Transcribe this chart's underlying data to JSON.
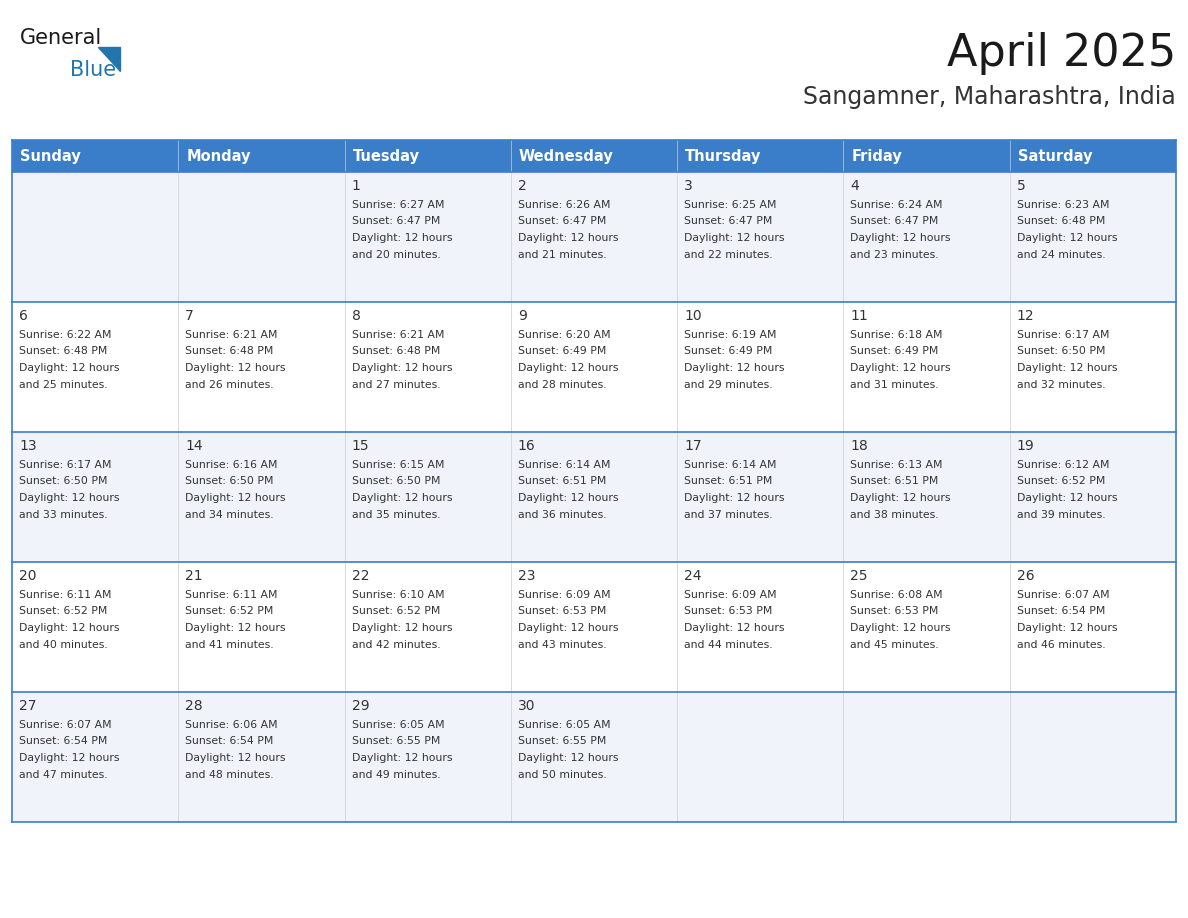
{
  "title": "April 2025",
  "subtitle": "Sangamner, Maharashtra, India",
  "header_bg_color": "#3A7DC9",
  "header_text_color": "#FFFFFF",
  "cell_bg_even": "#F0F4FA",
  "cell_bg_odd": "#FFFFFF",
  "border_color": "#3A7DC9",
  "inner_line_color": "#3A7DC9",
  "day_number_color": "#333333",
  "cell_text_color": "#333333",
  "title_color": "#1a1a1a",
  "subtitle_color": "#333333",
  "days_of_week": [
    "Sunday",
    "Monday",
    "Tuesday",
    "Wednesday",
    "Thursday",
    "Friday",
    "Saturday"
  ],
  "logo_general_color": "#1a1a1a",
  "logo_blue_color": "#2176AE",
  "weeks": [
    [
      {
        "day": "",
        "sunrise": "",
        "sunset": "",
        "daylight_min": 0
      },
      {
        "day": "",
        "sunrise": "",
        "sunset": "",
        "daylight_min": 0
      },
      {
        "day": "1",
        "sunrise": "6:27 AM",
        "sunset": "6:47 PM",
        "daylight_min": 20
      },
      {
        "day": "2",
        "sunrise": "6:26 AM",
        "sunset": "6:47 PM",
        "daylight_min": 21
      },
      {
        "day": "3",
        "sunrise": "6:25 AM",
        "sunset": "6:47 PM",
        "daylight_min": 22
      },
      {
        "day": "4",
        "sunrise": "6:24 AM",
        "sunset": "6:47 PM",
        "daylight_min": 23
      },
      {
        "day": "5",
        "sunrise": "6:23 AM",
        "sunset": "6:48 PM",
        "daylight_min": 24
      }
    ],
    [
      {
        "day": "6",
        "sunrise": "6:22 AM",
        "sunset": "6:48 PM",
        "daylight_min": 25
      },
      {
        "day": "7",
        "sunrise": "6:21 AM",
        "sunset": "6:48 PM",
        "daylight_min": 26
      },
      {
        "day": "8",
        "sunrise": "6:21 AM",
        "sunset": "6:48 PM",
        "daylight_min": 27
      },
      {
        "day": "9",
        "sunrise": "6:20 AM",
        "sunset": "6:49 PM",
        "daylight_min": 28
      },
      {
        "day": "10",
        "sunrise": "6:19 AM",
        "sunset": "6:49 PM",
        "daylight_min": 29
      },
      {
        "day": "11",
        "sunrise": "6:18 AM",
        "sunset": "6:49 PM",
        "daylight_min": 31
      },
      {
        "day": "12",
        "sunrise": "6:17 AM",
        "sunset": "6:50 PM",
        "daylight_min": 32
      }
    ],
    [
      {
        "day": "13",
        "sunrise": "6:17 AM",
        "sunset": "6:50 PM",
        "daylight_min": 33
      },
      {
        "day": "14",
        "sunrise": "6:16 AM",
        "sunset": "6:50 PM",
        "daylight_min": 34
      },
      {
        "day": "15",
        "sunrise": "6:15 AM",
        "sunset": "6:50 PM",
        "daylight_min": 35
      },
      {
        "day": "16",
        "sunrise": "6:14 AM",
        "sunset": "6:51 PM",
        "daylight_min": 36
      },
      {
        "day": "17",
        "sunrise": "6:14 AM",
        "sunset": "6:51 PM",
        "daylight_min": 37
      },
      {
        "day": "18",
        "sunrise": "6:13 AM",
        "sunset": "6:51 PM",
        "daylight_min": 38
      },
      {
        "day": "19",
        "sunrise": "6:12 AM",
        "sunset": "6:52 PM",
        "daylight_min": 39
      }
    ],
    [
      {
        "day": "20",
        "sunrise": "6:11 AM",
        "sunset": "6:52 PM",
        "daylight_min": 40
      },
      {
        "day": "21",
        "sunrise": "6:11 AM",
        "sunset": "6:52 PM",
        "daylight_min": 41
      },
      {
        "day": "22",
        "sunrise": "6:10 AM",
        "sunset": "6:52 PM",
        "daylight_min": 42
      },
      {
        "day": "23",
        "sunrise": "6:09 AM",
        "sunset": "6:53 PM",
        "daylight_min": 43
      },
      {
        "day": "24",
        "sunrise": "6:09 AM",
        "sunset": "6:53 PM",
        "daylight_min": 44
      },
      {
        "day": "25",
        "sunrise": "6:08 AM",
        "sunset": "6:53 PM",
        "daylight_min": 45
      },
      {
        "day": "26",
        "sunrise": "6:07 AM",
        "sunset": "6:54 PM",
        "daylight_min": 46
      }
    ],
    [
      {
        "day": "27",
        "sunrise": "6:07 AM",
        "sunset": "6:54 PM",
        "daylight_min": 47
      },
      {
        "day": "28",
        "sunrise": "6:06 AM",
        "sunset": "6:54 PM",
        "daylight_min": 48
      },
      {
        "day": "29",
        "sunrise": "6:05 AM",
        "sunset": "6:55 PM",
        "daylight_min": 49
      },
      {
        "day": "30",
        "sunrise": "6:05 AM",
        "sunset": "6:55 PM",
        "daylight_min": 50
      },
      {
        "day": "",
        "sunrise": "",
        "sunset": "",
        "daylight_min": 0
      },
      {
        "day": "",
        "sunrise": "",
        "sunset": "",
        "daylight_min": 0
      },
      {
        "day": "",
        "sunrise": "",
        "sunset": "",
        "daylight_min": 0
      }
    ]
  ]
}
